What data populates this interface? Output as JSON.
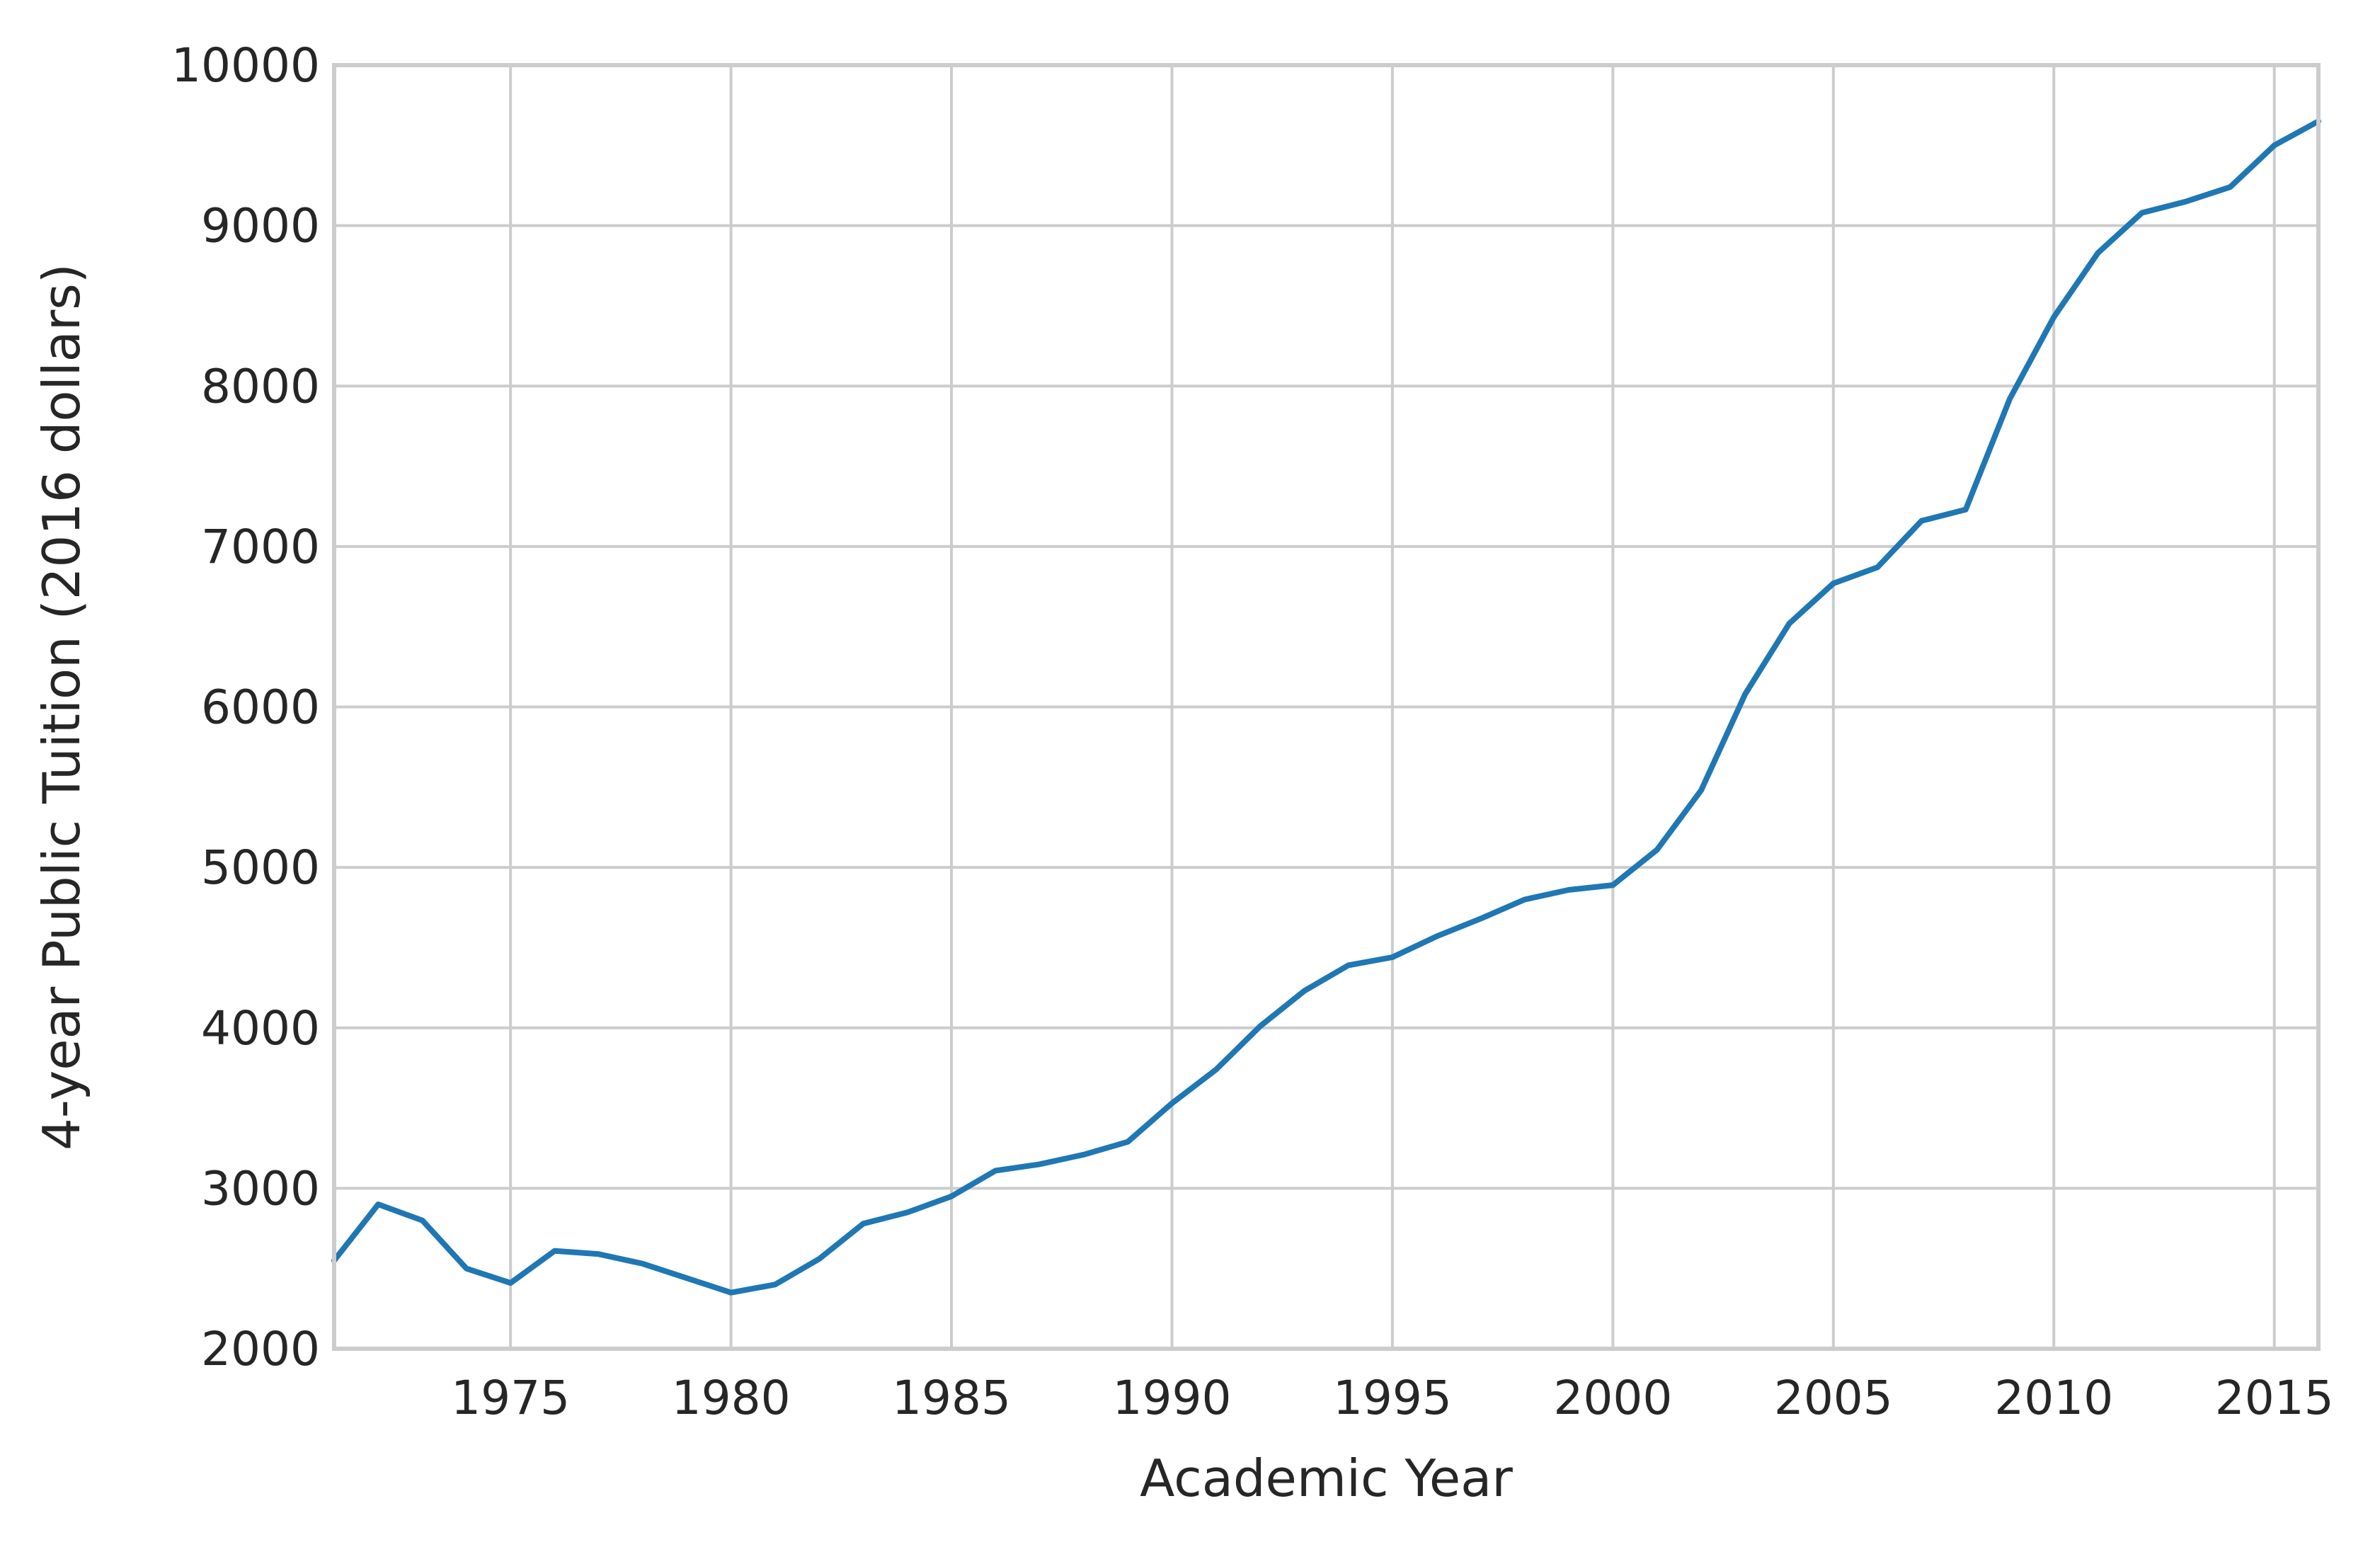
{
  "chart_data": {
    "type": "line",
    "title": "",
    "xlabel": "Academic Year",
    "ylabel": "4-year Public Tuition (2016 dollars)",
    "xlim": [
      1971,
      2016
    ],
    "ylim": [
      2000,
      10000
    ],
    "xticks": [
      1975,
      1980,
      1985,
      1990,
      1995,
      2000,
      2005,
      2010,
      2015
    ],
    "yticks": [
      2000,
      3000,
      4000,
      5000,
      6000,
      7000,
      8000,
      9000,
      10000
    ],
    "grid": true,
    "series": [
      {
        "color": "#1f77b4",
        "x": [
          1971,
          1972,
          1973,
          1974,
          1975,
          1976,
          1977,
          1978,
          1979,
          1980,
          1981,
          1982,
          1983,
          1984,
          1985,
          1986,
          1987,
          1988,
          1989,
          1990,
          1991,
          1992,
          1993,
          1994,
          1995,
          1996,
          1997,
          1998,
          1999,
          2000,
          2001,
          2002,
          2003,
          2004,
          2005,
          2006,
          2007,
          2008,
          2009,
          2010,
          2011,
          2012,
          2013,
          2014,
          2015,
          2016
        ],
        "y": [
          2550,
          2900,
          2800,
          2500,
          2410,
          2610,
          2590,
          2530,
          2440,
          2350,
          2400,
          2560,
          2780,
          2850,
          2950,
          3110,
          3150,
          3210,
          3290,
          3530,
          3740,
          4010,
          4230,
          4390,
          4440,
          4570,
          4680,
          4800,
          4860,
          4890,
          5110,
          5480,
          6080,
          6520,
          6770,
          6870,
          7160,
          7230,
          7920,
          8430,
          8830,
          9080,
          9150,
          9240,
          9500,
          9650
        ]
      }
    ]
  }
}
